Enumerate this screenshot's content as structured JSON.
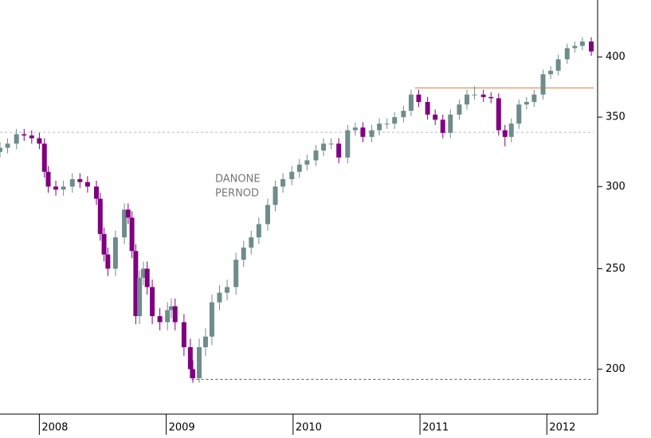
{
  "chart_data": {
    "type": "candlestick",
    "x": [
      2007.69,
      2007.75,
      2007.82,
      2007.88,
      2007.94,
      2008.0,
      2008.04,
      2008.07,
      2008.13,
      2008.19,
      2008.26,
      2008.32,
      2008.38,
      2008.45,
      2008.48,
      2008.51,
      2008.54,
      2008.6,
      2008.67,
      2008.7,
      2008.73,
      2008.76,
      2008.79,
      2008.82,
      2008.85,
      2008.89,
      2008.95,
      2009.01,
      2009.04,
      2009.07,
      2009.14,
      2009.19,
      2009.21,
      2009.26,
      2009.31,
      2009.36,
      2009.42,
      2009.48,
      2009.55,
      2009.61,
      2009.67,
      2009.73,
      2009.8,
      2009.86,
      2009.92,
      2009.99,
      2010.05,
      2010.11,
      2010.18,
      2010.24,
      2010.3,
      2010.36,
      2010.43,
      2010.49,
      2010.55,
      2010.62,
      2010.68,
      2010.74,
      2010.8,
      2010.87,
      2010.93,
      2010.99,
      2011.06,
      2011.12,
      2011.18,
      2011.24,
      2011.31,
      2011.37,
      2011.43,
      2011.5,
      2011.56,
      2011.62,
      2011.67,
      2011.72,
      2011.78,
      2011.84,
      2011.9,
      2011.97,
      2012.03,
      2012.09,
      2012.16,
      2012.22,
      2012.28,
      2012.35
    ],
    "open": [
      324,
      327,
      330,
      337,
      336,
      334,
      330,
      310,
      300,
      298,
      300,
      305,
      303,
      300,
      292,
      270,
      258,
      250,
      268,
      285,
      280,
      260,
      225,
      245,
      250,
      240,
      225,
      222,
      228,
      230,
      222,
      210,
      200,
      196,
      210,
      215,
      232,
      237,
      240,
      255,
      262,
      268,
      276,
      288,
      300,
      305,
      310,
      315,
      318,
      325,
      330,
      330,
      320,
      340,
      342,
      335,
      340,
      345,
      345,
      350,
      355,
      368,
      362,
      352,
      348,
      338,
      352,
      360,
      368,
      368,
      366,
      365,
      340,
      335,
      345,
      360,
      362,
      368,
      385,
      388,
      398,
      408,
      410,
      414
    ],
    "high": [
      331,
      334,
      341,
      341,
      340,
      338,
      334,
      314,
      304,
      304,
      309,
      309,
      307,
      304,
      296,
      274,
      262,
      272,
      289,
      289,
      284,
      264,
      249,
      254,
      254,
      244,
      229,
      232,
      234,
      234,
      226,
      214,
      204,
      214,
      219,
      236,
      241,
      244,
      259,
      266,
      272,
      280,
      292,
      304,
      309,
      314,
      319,
      322,
      329,
      334,
      334,
      334,
      344,
      346,
      346,
      344,
      349,
      349,
      354,
      359,
      372,
      372,
      366,
      356,
      352,
      356,
      364,
      372,
      375,
      372,
      370,
      369,
      344,
      349,
      364,
      366,
      372,
      389,
      392,
      402,
      412,
      414,
      418,
      418
    ],
    "low": [
      320,
      323,
      326,
      332,
      330,
      326,
      306,
      296,
      294,
      294,
      296,
      299,
      296,
      288,
      266,
      254,
      246,
      246,
      264,
      276,
      256,
      221,
      221,
      241,
      236,
      221,
      218,
      218,
      224,
      218,
      206,
      196,
      194,
      194,
      206,
      211,
      228,
      233,
      236,
      251,
      258,
      264,
      272,
      284,
      296,
      301,
      306,
      311,
      314,
      321,
      326,
      316,
      316,
      336,
      331,
      331,
      336,
      341,
      341,
      346,
      351,
      358,
      348,
      344,
      334,
      334,
      348,
      356,
      364,
      362,
      361,
      336,
      328,
      331,
      341,
      356,
      358,
      364,
      381,
      384,
      394,
      404,
      406,
      401
    ],
    "close": [
      327,
      330,
      337,
      336,
      334,
      330,
      310,
      300,
      298,
      300,
      305,
      303,
      300,
      292,
      270,
      258,
      250,
      268,
      285,
      280,
      260,
      225,
      245,
      250,
      240,
      225,
      222,
      228,
      230,
      222,
      210,
      200,
      196,
      210,
      215,
      232,
      237,
      240,
      255,
      262,
      268,
      276,
      288,
      300,
      305,
      310,
      315,
      318,
      325,
      330,
      330,
      320,
      340,
      342,
      335,
      340,
      345,
      345,
      350,
      355,
      368,
      362,
      352,
      348,
      338,
      352,
      360,
      368,
      368,
      366,
      365,
      340,
      335,
      345,
      360,
      362,
      368,
      385,
      388,
      398,
      408,
      410,
      414,
      405
    ],
    "up_color": "#6f8c8c",
    "down_color": "#800080",
    "xlim": [
      2007.69,
      2012.4
    ],
    "xticks": [
      2008,
      2009,
      2010,
      2011,
      2012
    ],
    "ylim": [
      181,
      454
    ],
    "yticks": [
      200,
      250,
      300,
      350,
      400
    ],
    "log_y": true,
    "annotation": [
      "DANONE",
      "PERNOD"
    ],
    "hlines": [
      {
        "value": 338.4,
        "xstart": 2007.69,
        "color": "#bbbbbb",
        "dashed": true
      },
      {
        "value": 373.5,
        "xstart": 2010.96,
        "color": "#f07030",
        "dashed": false
      },
      {
        "value": 195.5,
        "xstart": 2009.2,
        "color": "#555555",
        "dashed": true
      }
    ]
  }
}
